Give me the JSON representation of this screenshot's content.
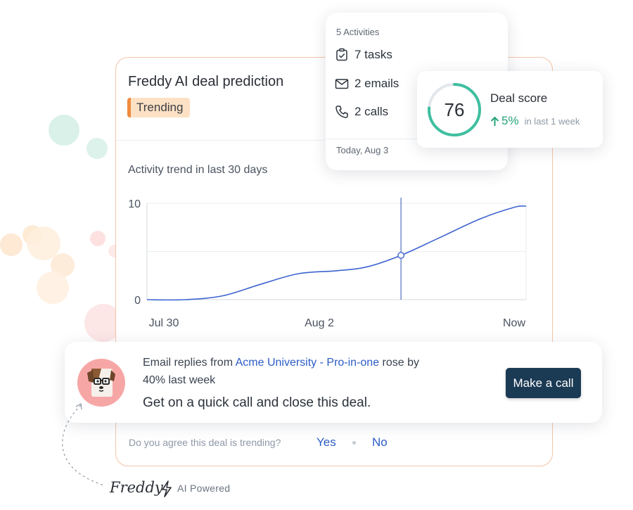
{
  "card": {
    "title": "Freddy AI deal prediction",
    "badge": "Trending",
    "trend_label": "Activity trend in last 30 days"
  },
  "chart_data": {
    "type": "line",
    "x_ticks": [
      "Jul 30",
      "Aug 2",
      "Now"
    ],
    "y_ticks": [
      "0",
      "10"
    ],
    "ylim": [
      0,
      10
    ],
    "grid": true,
    "series": [
      {
        "values": [
          {
            "x": 0.0,
            "y": 0.0
          },
          {
            "x": 0.1,
            "y": 0.0
          },
          {
            "x": 0.2,
            "y": 0.4
          },
          {
            "x": 0.3,
            "y": 1.6
          },
          {
            "x": 0.4,
            "y": 2.7
          },
          {
            "x": 0.5,
            "y": 3.0
          },
          {
            "x": 0.58,
            "y": 3.4
          },
          {
            "x": 0.67,
            "y": 4.6
          },
          {
            "x": 0.77,
            "y": 6.4
          },
          {
            "x": 0.88,
            "y": 8.4
          },
          {
            "x": 0.97,
            "y": 9.6
          },
          {
            "x": 1.0,
            "y": 9.7
          }
        ]
      }
    ],
    "highlight": {
      "x": 0.67,
      "y": 4.6
    }
  },
  "suggestion": {
    "prefix": "Email replies from ",
    "company": "Acme University",
    "separator": " - ",
    "product": "Pro-in-one",
    "suffix": " rose by",
    "line2": "40% last week",
    "cta": "Get on a quick call and close this deal.",
    "button": "Make a call"
  },
  "feedback": {
    "question": "Do you agree this deal is trending?",
    "yes": "Yes",
    "no": "No"
  },
  "activities": {
    "header": "5 Activities",
    "tasks": "7 tasks",
    "emails": "2 emails",
    "calls": "2 calls",
    "date": "Today, Aug 3"
  },
  "deal_score": {
    "value": "76",
    "score_fraction": 0.76,
    "title": "Deal score",
    "change": "5%",
    "period": "in last 1 week"
  },
  "branding": {
    "name": "Freddy",
    "tag": "AI Powered"
  },
  "colors": {
    "accent_blue": "#2c5cc5",
    "line_blue": "#3d63d0",
    "score_green": "#3fbfa0",
    "button_navy": "#1b3a54",
    "badge_orange": "#f08a3e"
  }
}
